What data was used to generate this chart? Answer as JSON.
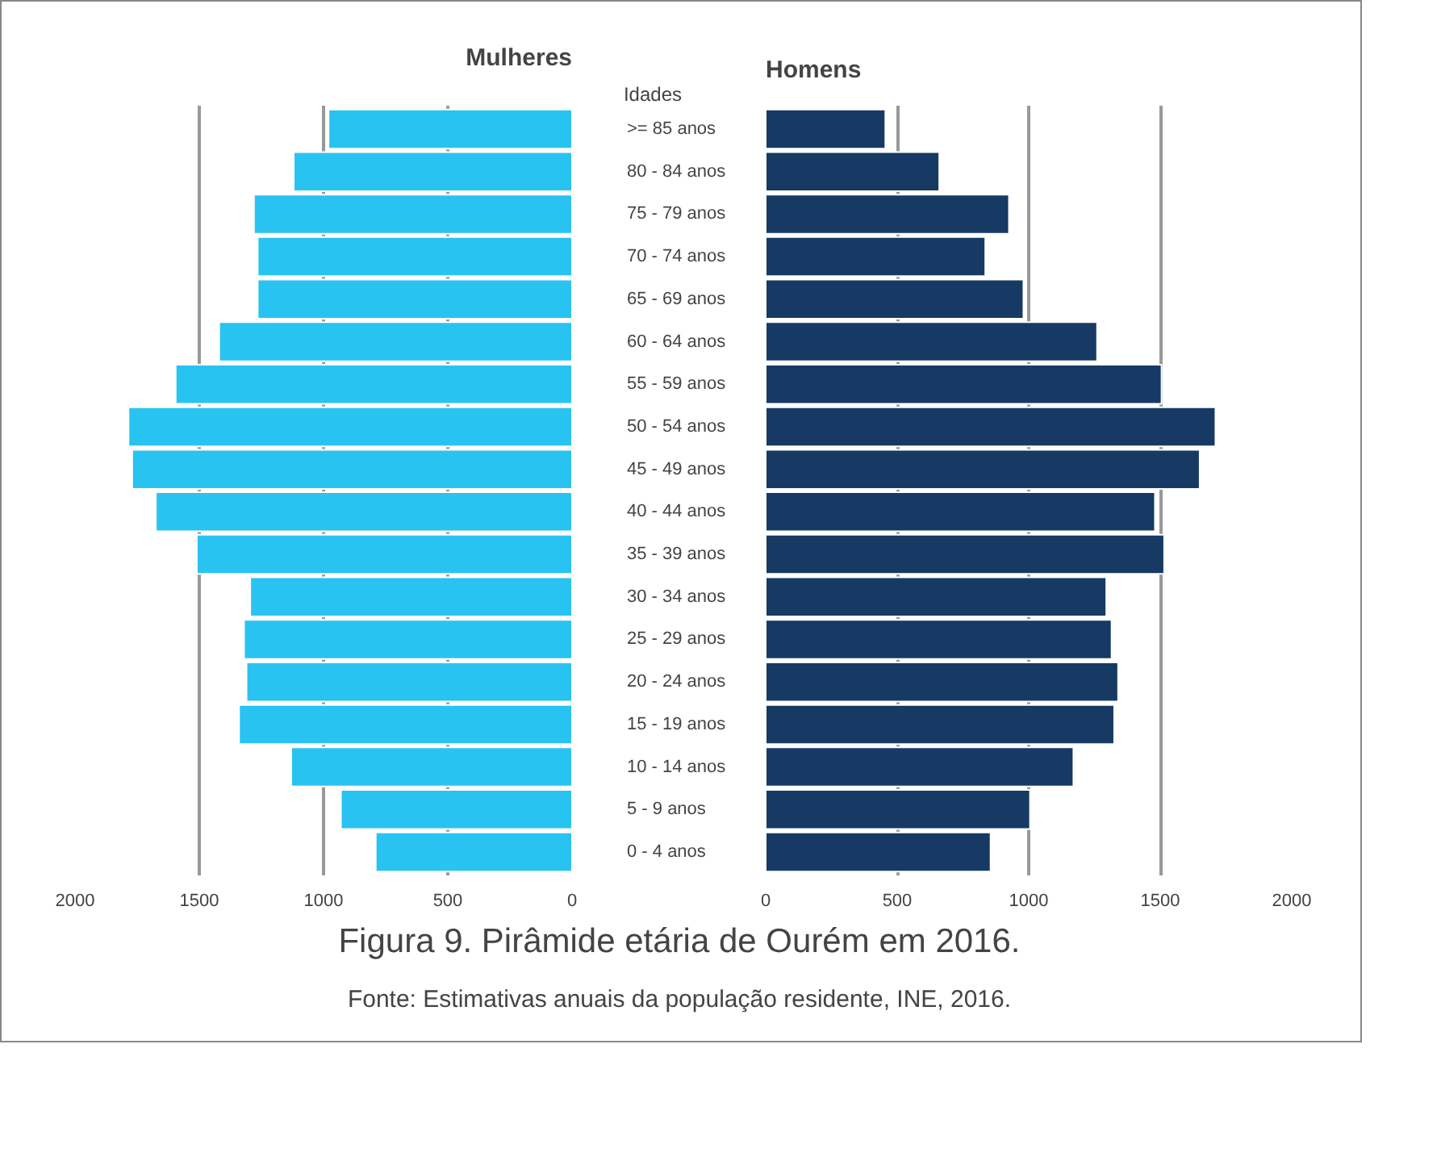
{
  "chart_data": [
    {
      "type": "bar",
      "orientation": "horizontal",
      "title": "Mulheres",
      "categories": [
        ">= 85 anos",
        "80 - 84 anos",
        "75 - 79 anos",
        "70 - 74 anos",
        "65 - 69 anos",
        "60 - 64 anos",
        "55 - 59 anos",
        "50 - 54 anos",
        "45 - 49 anos",
        "40 - 44 anos",
        "35 - 39 anos",
        "30 - 34 anos",
        "25 - 29 anos",
        "20 - 24 anos",
        "15 - 19 anos",
        "10 - 14 anos",
        "5 - 9 anos",
        "0 - 4 anos"
      ],
      "series": [
        {
          "color": "#29c3f2",
          "values": [
            980,
            1120,
            1280,
            1265,
            1265,
            1420,
            1595,
            1785,
            1770,
            1675,
            1510,
            1295,
            1320,
            1310,
            1340,
            1130,
            930,
            790
          ]
        }
      ],
      "xlim": [
        2000,
        0
      ],
      "xticks": [
        2000,
        1500,
        1000,
        500,
        0
      ],
      "grid": "x",
      "ylabel": "Idades"
    },
    {
      "type": "bar",
      "orientation": "horizontal",
      "title": "Homens",
      "tick_labels": "x",
      "categories": [
        null,
        null,
        null,
        null,
        null,
        null,
        null,
        null,
        null,
        null,
        null,
        null,
        null,
        null,
        null,
        null,
        null,
        null
      ],
      "series": [
        {
          "color": "#163a63",
          "values": [
            455,
            660,
            925,
            835,
            980,
            1260,
            1505,
            1710,
            1650,
            1480,
            1515,
            1295,
            1315,
            1340,
            1325,
            1170,
            1005,
            855
          ]
        }
      ],
      "xlim": [
        0,
        2000
      ],
      "xticks": [
        0,
        500,
        1000,
        1500,
        2000
      ],
      "grid": "x",
      "annotations": [
        "Figura 9. Pirâmide etária de Ourém em 2016.",
        "Fonte: Estimativas anuais da população residente, INE, 2016."
      ]
    }
  ]
}
